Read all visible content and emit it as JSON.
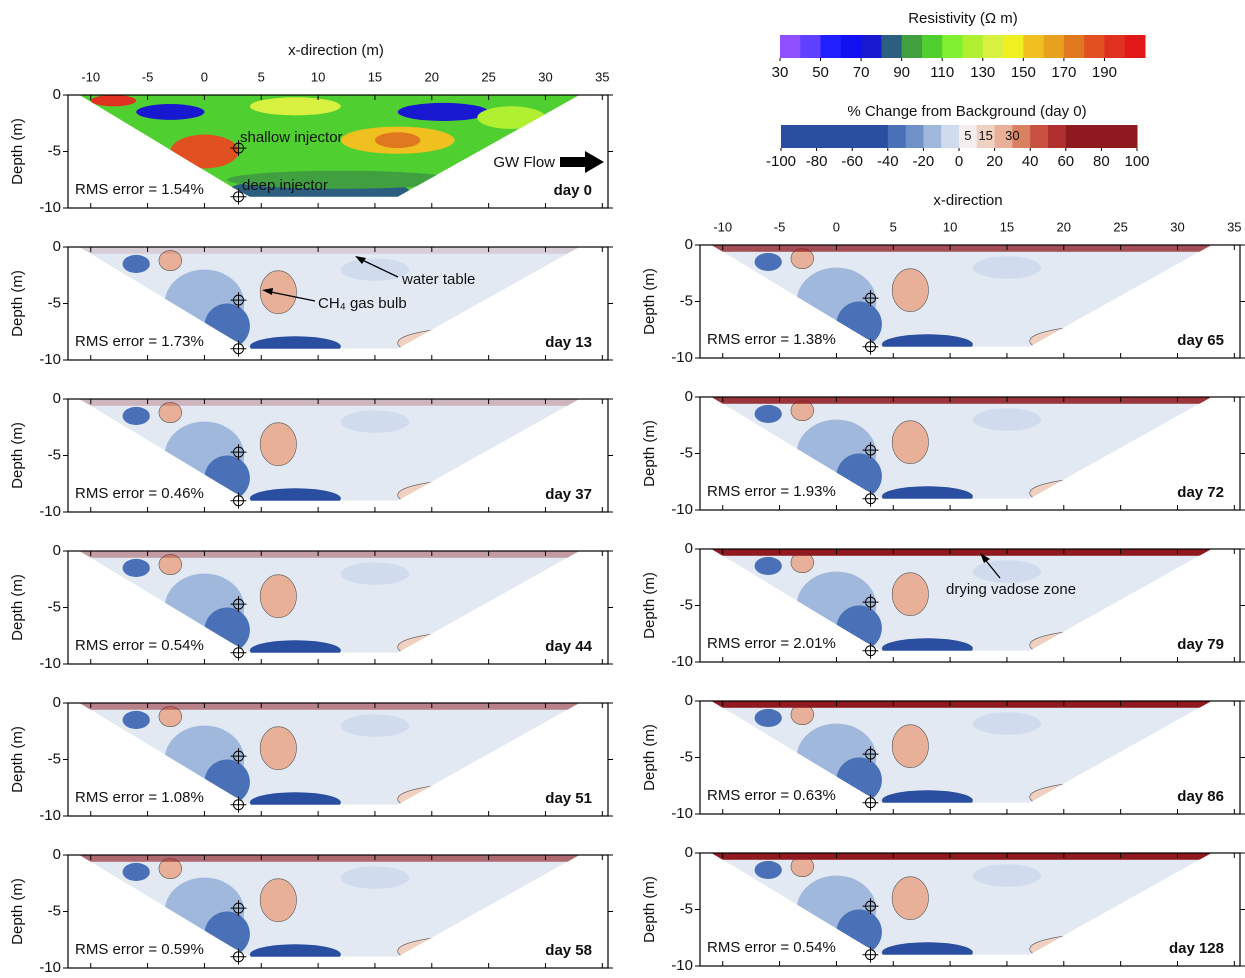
{
  "resistivity_colorbar": {
    "title": "Resistivity (Ω m)",
    "ticks": [
      30,
      50,
      70,
      90,
      110,
      130,
      150,
      170,
      190
    ],
    "range": [
      30,
      210
    ],
    "colors": [
      "#9050ff",
      "#6040ff",
      "#2020ff",
      "#1010f0",
      "#1818d0",
      "#2c5e80",
      "#40a040",
      "#50d030",
      "#80f030",
      "#b0f030",
      "#d8f040",
      "#f0f020",
      "#f0c020",
      "#e8a020",
      "#e07820",
      "#e05020",
      "#e03020",
      "#e01818"
    ]
  },
  "change_colorbar": {
    "title": "% Change from Background (day 0)",
    "ticks": [
      -100,
      -80,
      -60,
      -40,
      -20,
      0,
      20,
      40,
      60,
      80,
      100
    ],
    "inner_ticks": [
      5,
      15,
      30
    ],
    "range": [
      -100,
      100
    ],
    "colors": [
      "#2a4ea0",
      "#2a4ea0",
      "#2a4ea0",
      "#2a4ea0",
      "#2a4ea0",
      "#2a4ea0",
      "#4a70b8",
      "#7090c8",
      "#a0b8dc",
      "#d0dcee",
      "#f4eeee",
      "#f0d0c0",
      "#e8b098",
      "#d88060",
      "#c85040",
      "#b03030",
      "#8e1a20",
      "#8e1a20",
      "#8e1a20",
      "#8e1a20"
    ]
  },
  "x_axis": {
    "labels": [
      "x-direction (m)",
      "x-direction"
    ],
    "xlim": [
      -12,
      35.5
    ],
    "xticks": [
      -10,
      -5,
      0,
      5,
      10,
      15,
      20,
      25,
      30,
      35
    ]
  },
  "y_axis": {
    "label": "Depth (m)",
    "ylim": [
      -10,
      0
    ],
    "yticks": [
      0,
      -5,
      -10
    ]
  },
  "panels": [
    {
      "rms": "RMS error = 1.54%",
      "day": "day 0"
    },
    {
      "rms": "RMS error = 1.73%",
      "day": "day 13"
    },
    {
      "rms": "RMS error = 0.46%",
      "day": "day 37"
    },
    {
      "rms": "RMS error = 0.54%",
      "day": "day 44"
    },
    {
      "rms": "RMS error = 1.08%",
      "day": "day 51"
    },
    {
      "rms": "RMS error = 0.59%",
      "day": "day 58"
    },
    {
      "rms": "RMS error = 1.38%",
      "day": "day 65"
    },
    {
      "rms": "RMS error = 1.93%",
      "day": "day 72"
    },
    {
      "rms": "RMS error = 2.01%",
      "day": "day 79"
    },
    {
      "rms": "RMS error = 0.63%",
      "day": "day 86"
    },
    {
      "rms": "RMS error = 0.54%",
      "day": "day 128"
    }
  ],
  "annotations": {
    "shallow_injector": "shallow injector",
    "deep_injector": "deep injector",
    "gw_flow": "GW Flow",
    "water_table": "water table",
    "gas_bulb": "CH₄ gas bulb",
    "vadose": "drying vadose zone"
  }
}
